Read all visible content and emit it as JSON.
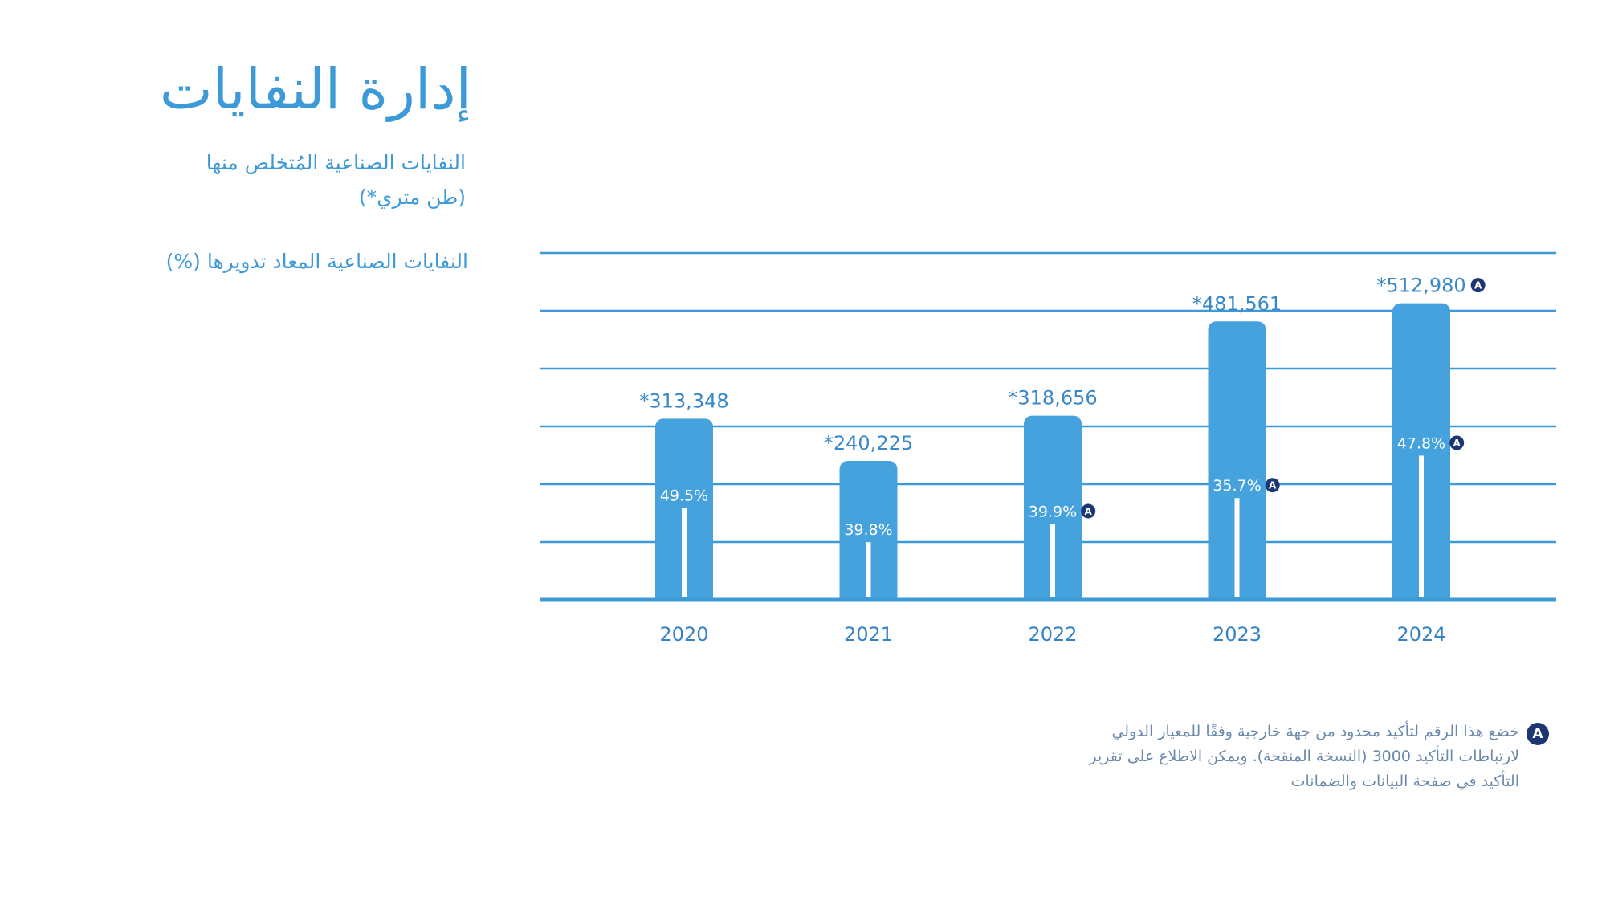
{
  "title": "إدارة النفايات",
  "badge_letter": "A",
  "colors": {
    "accent": "#3d9ad8",
    "bar": "#45a2dd",
    "inner_bar": "#ffffff",
    "badge": "#1c3573",
    "value_label": "#3b88c8",
    "year_label": "#3582c4",
    "footnote_text": "#6a8aac"
  },
  "chart_data": {
    "type": "bar",
    "categories": [
      "2020",
      "2021",
      "2022",
      "2023",
      "2024"
    ],
    "series": [
      {
        "name": "النفايات الصناعية المُتخلص منها",
        "unit": "(طن متري*)",
        "values": [
          313348,
          240225,
          318656,
          481561,
          512980
        ],
        "labels": [
          "*313,348",
          "*240,225",
          "*318,656",
          "*481,561",
          "*512,980"
        ],
        "assured": [
          false,
          false,
          false,
          false,
          true
        ]
      },
      {
        "name": "النفايات الصناعية المعاد تدويرها (%)",
        "values": [
          49.5,
          39.8,
          39.9,
          35.7,
          47.8
        ],
        "labels": [
          "49.5%",
          "39.8%",
          "39.9%",
          "35.7%",
          "47.8%"
        ],
        "assured": [
          false,
          false,
          true,
          true,
          true
        ]
      }
    ],
    "ylim": [
      0,
      600000
    ],
    "grid": true,
    "legend_position": "top-left"
  },
  "footnote": {
    "lines": [
      "خضع هذا الرقم لتأكيد محدود من جهة خارجية وفقًا للمعيار الدولي",
      "لارتباطات التأكيد 3000 (النسخة المنقحة). ويمكن الاطلاع على تقرير",
      "التأكيد في صفحة البيانات والضمانات"
    ]
  }
}
